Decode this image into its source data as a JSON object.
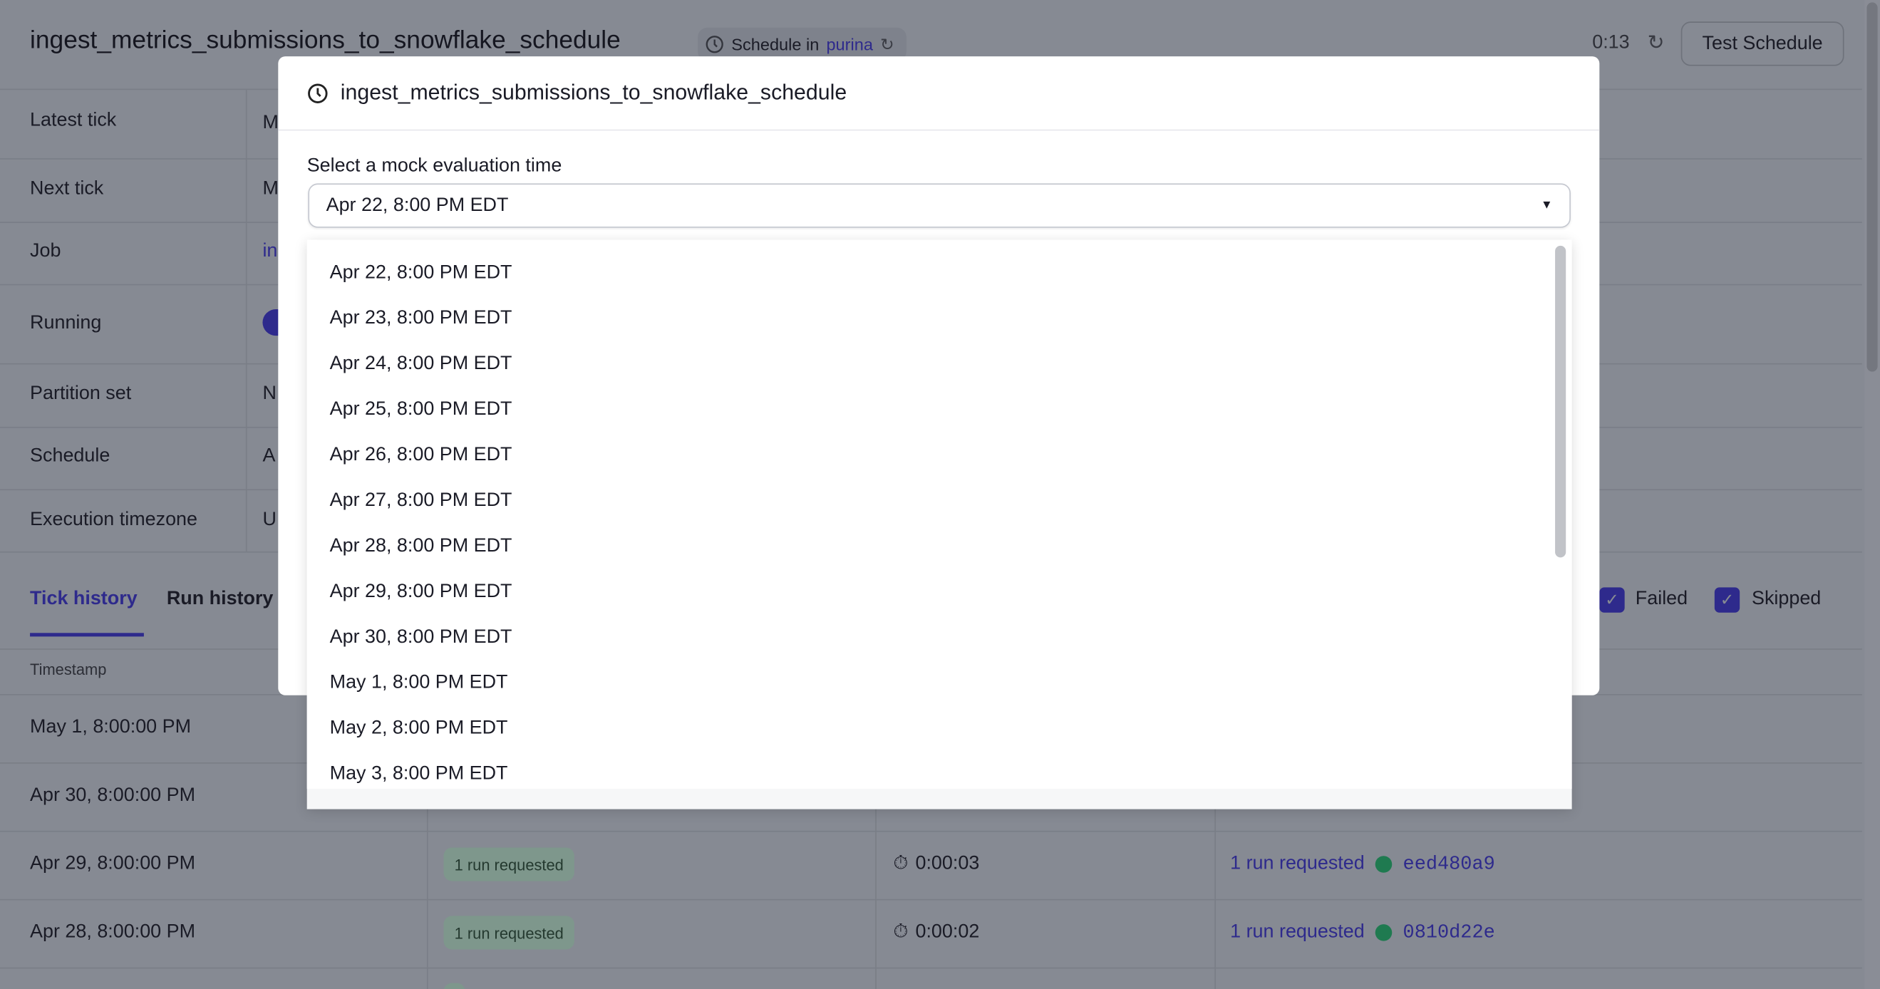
{
  "header": {
    "title": "ingest_metrics_submissions_to_snowflake_schedule",
    "tag_prefix": "Schedule in",
    "tag_location": "purina",
    "timer": "0:13",
    "test_button": "Test Schedule"
  },
  "details": [
    {
      "label": "Latest tick",
      "value": "M"
    },
    {
      "label": "Next tick",
      "value": "M"
    },
    {
      "label": "Job",
      "value": "in"
    },
    {
      "label": "Running",
      "value": ""
    },
    {
      "label": "Partition set",
      "value": "N"
    },
    {
      "label": "Schedule",
      "value": "A"
    },
    {
      "label": "Execution timezone",
      "value": "U"
    }
  ],
  "running_toggle_on": true,
  "tabs": [
    {
      "label": "Tick history",
      "active": true
    },
    {
      "label": "Run history",
      "active": false
    }
  ],
  "filters": [
    {
      "label": "Failed",
      "checked": true
    },
    {
      "label": "Skipped",
      "checked": true
    }
  ],
  "table": {
    "header_timestamp": "Timestamp",
    "rows": [
      {
        "timestamp": "May 1, 8:00:00 PM"
      },
      {
        "timestamp": "Apr 30, 8:00:00 PM"
      },
      {
        "timestamp": "Apr 29, 8:00:00 PM",
        "status": "1 run requested",
        "duration": "0:00:03",
        "result": "1 run requested",
        "run_id": "eed480a9"
      },
      {
        "timestamp": "Apr 28, 8:00:00 PM",
        "status": "1 run requested",
        "duration": "0:00:02",
        "result": "1 run requested",
        "run_id": "0810d22e"
      }
    ]
  },
  "modal": {
    "title": "ingest_metrics_submissions_to_snowflake_schedule",
    "field_label": "Select a mock evaluation time",
    "selected": "Apr 22, 8:00 PM EDT",
    "options": [
      "Apr 22, 8:00 PM EDT",
      "Apr 23, 8:00 PM EDT",
      "Apr 24, 8:00 PM EDT",
      "Apr 25, 8:00 PM EDT",
      "Apr 26, 8:00 PM EDT",
      "Apr 27, 8:00 PM EDT",
      "Apr 28, 8:00 PM EDT",
      "Apr 29, 8:00 PM EDT",
      "Apr 30, 8:00 PM EDT",
      "May 1, 8:00 PM EDT",
      "May 2, 8:00 PM EDT",
      "May 3, 8:00 PM EDT"
    ]
  },
  "colors": {
    "accent": "#4f43dd",
    "success": "#2aa06a",
    "badge_bg": "#d7f0e4"
  }
}
